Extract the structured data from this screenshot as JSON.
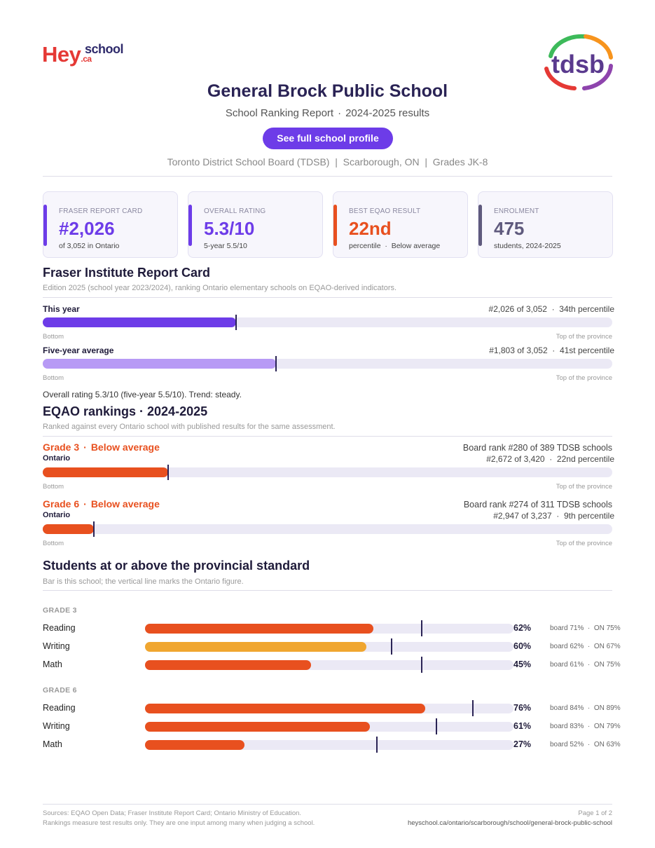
{
  "brand": {
    "logo_main": "Hey",
    "logo_school": "school",
    "logo_suffix": ".ca",
    "board_logo_text": "tdsb"
  },
  "header": {
    "title": "General Brock Public School",
    "subtitle_left": "School Ranking Report",
    "subtitle_sep": "·",
    "subtitle_right": "2024-2025 results",
    "cta_label": "See full school profile",
    "meta": "Toronto District School Board (TDSB)  |  Scarborough, ON  |  Grades JK-8"
  },
  "cards": [
    {
      "label": "Fraser Report Card",
      "value": "#2,026",
      "sub": "of 3,052 in Ontario",
      "color": "#6d3ce8"
    },
    {
      "label": "Overall Rating",
      "value": "5.3/10",
      "sub": "5-year 5.5/10",
      "color": "#6d3ce8"
    },
    {
      "label": "Best EQAO Result",
      "value": "22nd",
      "sub": "percentile  ·  Below average",
      "color": "#e8501f"
    },
    {
      "label": "Enrolment",
      "value": "475",
      "sub": "students, 2024-2025",
      "color": "#5f5a7d"
    }
  ],
  "fraser": {
    "title": "Fraser Institute Report Card",
    "desc": "Edition 2025 (school year 2023/2024), ranking Ontario elementary schools on EQAO-derived indicators.",
    "rows": [
      {
        "label": "This year",
        "right": "#2,026 of 3,052  ·  34th percentile",
        "percentile": 34,
        "color": "#6d3ce8"
      },
      {
        "label": "Five-year average",
        "right": "#1,803 of 3,052  ·  41st percentile",
        "percentile": 41,
        "color": "#b79af5"
      }
    ],
    "axis_left": "Bottom",
    "axis_right": "Top of the province",
    "note": "Overall rating 5.3/10 (five-year 5.5/10). Trend: steady."
  },
  "eqao": {
    "title": "EQAO rankings  ·  2024-2025",
    "desc": "Ranked against every Ontario school with published results for the same assessment.",
    "grades": [
      {
        "grade": "Grade 3",
        "status": "Below average",
        "scope": "Ontario",
        "board_rank": "Board rank #280 of 389 TDSB schools",
        "ontario_rank": "#2,672 of 3,420  ·  22nd percentile",
        "percentile": 22
      },
      {
        "grade": "Grade 6",
        "status": "Below average",
        "scope": "Ontario",
        "board_rank": "Board rank #274 of 311 TDSB schools",
        "ontario_rank": "#2,947 of 3,237  ·  9th percentile",
        "percentile": 9
      }
    ],
    "axis_left": "Bottom",
    "axis_right": "Top of the province",
    "bar_color": "#e8501f"
  },
  "standard": {
    "title": "Students at or above the provincial standard",
    "desc": "Bar is this school; the vertical line marks the Ontario figure.",
    "groups": [
      {
        "label": "GRADE 3",
        "subjects": [
          {
            "name": "Reading",
            "pct": 62,
            "pct_label": "62%",
            "board": 71,
            "on": 75,
            "cmp": "board 71%  ·  ON 75%",
            "color": "#e8501f"
          },
          {
            "name": "Writing",
            "pct": 60,
            "pct_label": "60%",
            "board": 62,
            "on": 67,
            "cmp": "board 62%  ·  ON 67%",
            "color": "#f0a630"
          },
          {
            "name": "Math",
            "pct": 45,
            "pct_label": "45%",
            "board": 61,
            "on": 75,
            "cmp": "board 61%  ·  ON 75%",
            "color": "#e8501f"
          }
        ]
      },
      {
        "label": "GRADE 6",
        "subjects": [
          {
            "name": "Reading",
            "pct": 76,
            "pct_label": "76%",
            "board": 84,
            "on": 89,
            "cmp": "board 84%  ·  ON 89%",
            "color": "#e8501f"
          },
          {
            "name": "Writing",
            "pct": 61,
            "pct_label": "61%",
            "board": 83,
            "on": 79,
            "cmp": "board 83%  ·  ON 79%",
            "color": "#e8501f"
          },
          {
            "name": "Math",
            "pct": 27,
            "pct_label": "27%",
            "board": 52,
            "on": 63,
            "cmp": "board 52%  ·  ON 63%",
            "color": "#e8501f"
          }
        ]
      }
    ]
  },
  "footer": {
    "sources": "Sources: EQAO Open Data; Fraser Institute Report Card; Ontario Ministry of Education.",
    "disclaimer": "Rankings measure test results only. They are one input among many when judging a school.",
    "page": "Page 1 of 2",
    "url": "heyschool.ca/ontario/scarborough/school/general-brock-public-school"
  }
}
